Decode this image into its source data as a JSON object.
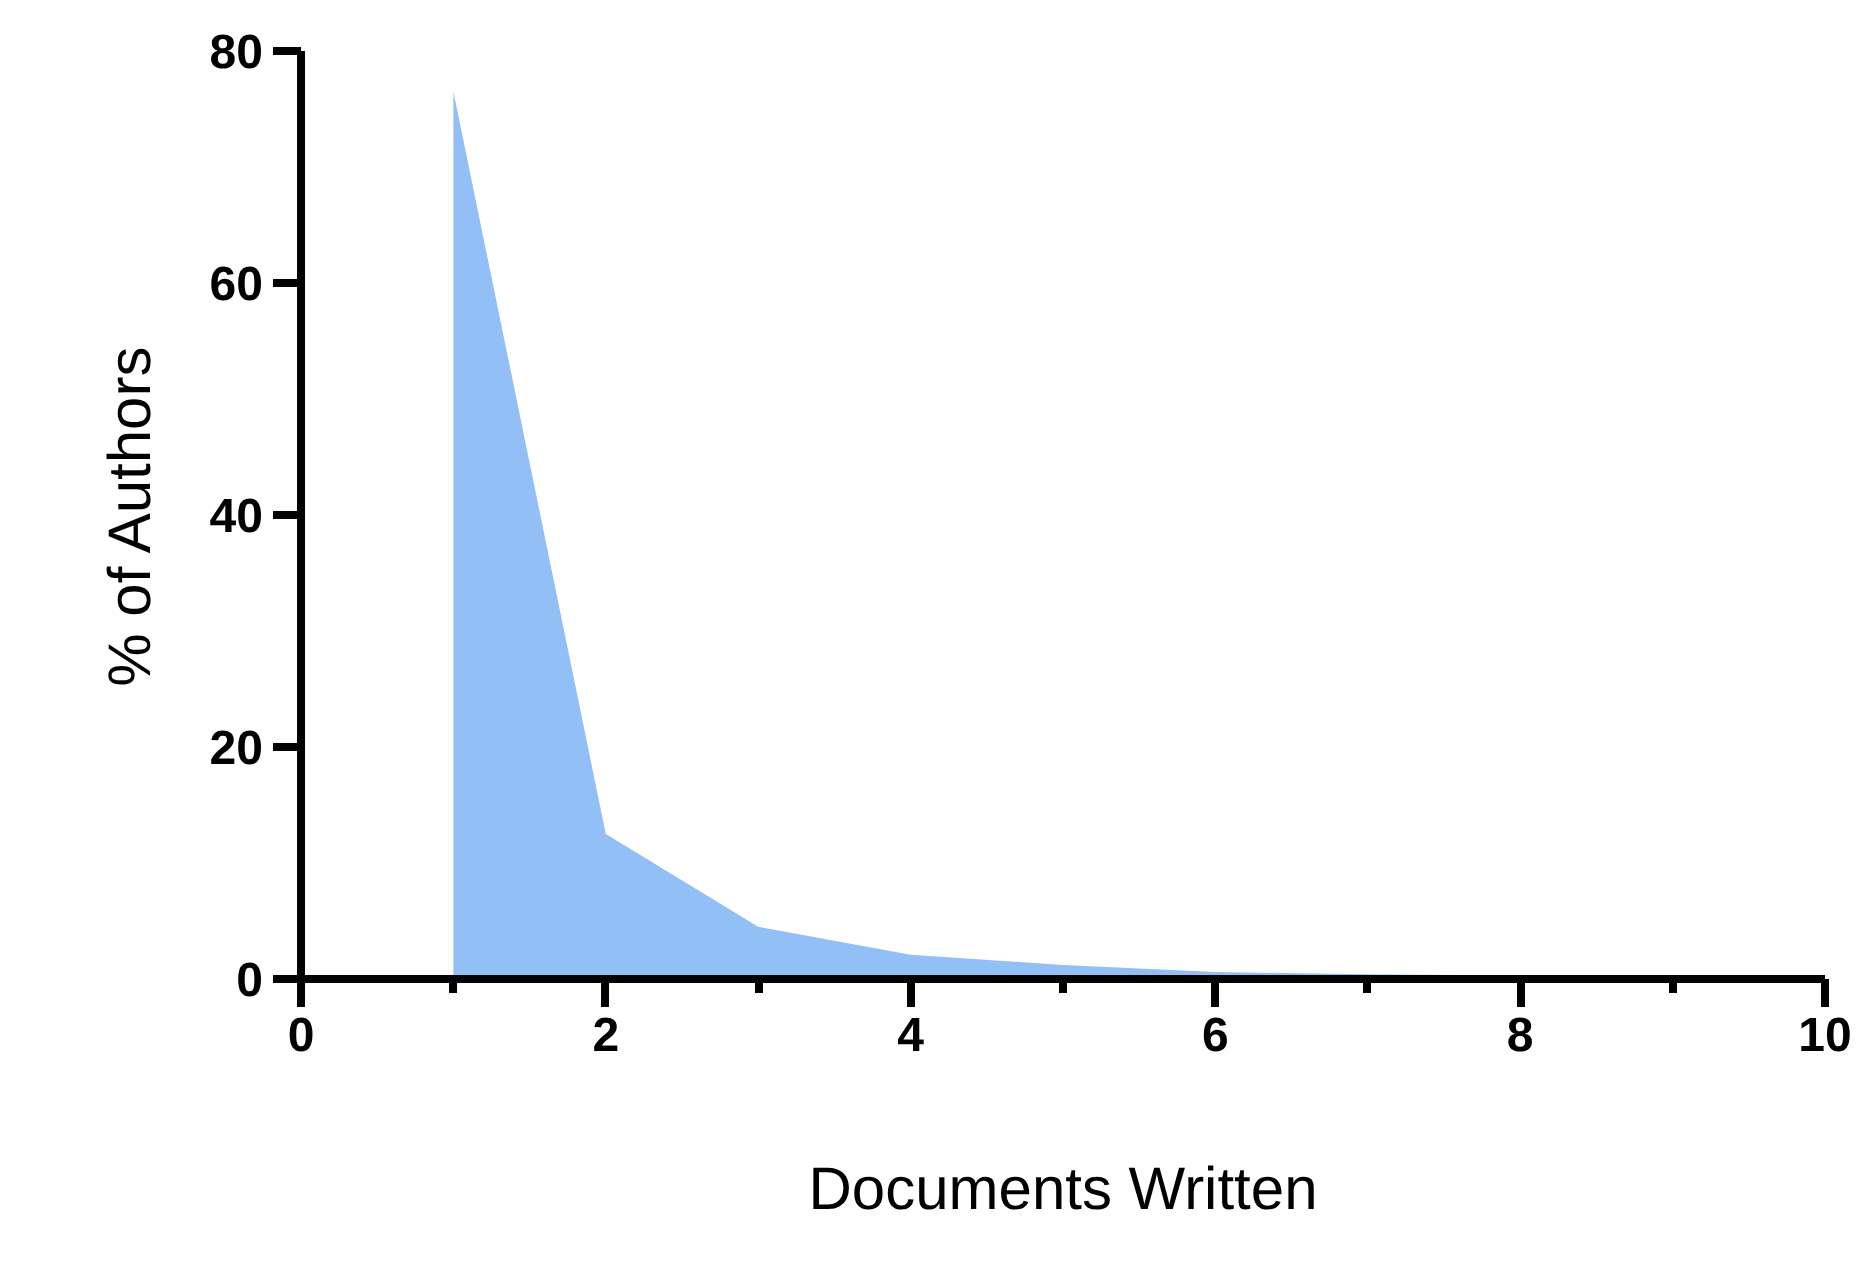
{
  "chart_data": {
    "type": "area",
    "xlabel": "Documents Written",
    "ylabel": "% of Authors",
    "x": [
      1,
      2,
      3,
      4,
      5,
      6,
      7,
      8,
      9,
      10
    ],
    "series": [
      {
        "color": "#93bff7",
        "values": [
          76.5,
          12.5,
          4.5,
          2.1,
          1.2,
          0.6,
          0.4,
          0.3,
          0.2,
          0.1
        ]
      }
    ],
    "xlim": [
      0,
      10
    ],
    "ylim": [
      0,
      80
    ],
    "xticks": [
      0,
      {
        "value": 1,
        "label": null
      },
      2,
      {
        "value": 3,
        "label": null
      },
      4,
      {
        "value": 5,
        "label": null
      },
      6,
      {
        "value": 7,
        "label": null
      },
      8,
      {
        "value": 9,
        "label": null
      },
      10
    ],
    "yticks": [
      0,
      20,
      40,
      60,
      80
    ],
    "grid": false
  }
}
